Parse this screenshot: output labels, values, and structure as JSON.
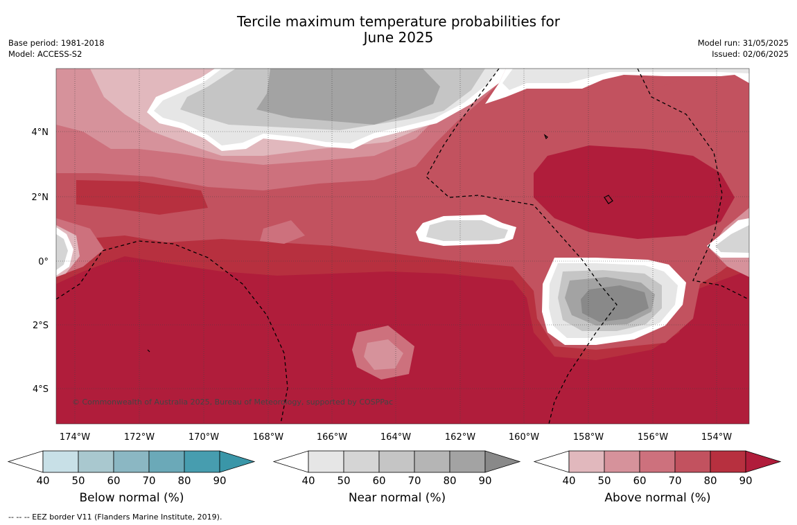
{
  "header": {
    "title_line1": "Tercile maximum temperature probabilities for",
    "title_line2": "June 2025",
    "base_period": "Base period: 1981-2018",
    "model": "Model: ACCESS-S2",
    "model_run": "Model run: 31/05/2025",
    "issued": "Issued: 02/06/2025"
  },
  "map": {
    "lon_labels": [
      "174°W",
      "172°W",
      "170°W",
      "168°W",
      "166°W",
      "164°W",
      "162°W",
      "160°W",
      "158°W",
      "156°W",
      "154°W"
    ],
    "lat_labels": [
      "4°N",
      "2°N",
      "0°",
      "2°S",
      "4°S"
    ],
    "copyright": "© Commonwealth of Australia 2025, Bureau of Meteorology, supported by COSPPac",
    "colors": {
      "above": [
        "#e1b8bd",
        "#d6929b",
        "#cd717d",
        "#c2525f",
        "#b7303f",
        "#b01d3b"
      ],
      "near": [
        "#e6e6e6",
        "#d5d5d5",
        "#c5c5c5",
        "#b5b5b5",
        "#a3a3a3",
        "#898989"
      ],
      "below": [
        "#c8e0e7",
        "#a9c8cf",
        "#8bb7c3",
        "#6ba9b8",
        "#479daf",
        "#3a96a8"
      ],
      "boundary": "#ffffff",
      "eez": "#000000"
    }
  },
  "colorbars": [
    {
      "title": "Below normal (%)",
      "ticks": [
        "40",
        "50",
        "60",
        "70",
        "80",
        "90"
      ],
      "colors": [
        "#c8e0e7",
        "#a9c8cf",
        "#8bb7c3",
        "#6ba9b8",
        "#479daf",
        "#3a96a8"
      ]
    },
    {
      "title": "Near normal (%)",
      "ticks": [
        "40",
        "50",
        "60",
        "70",
        "80",
        "90"
      ],
      "colors": [
        "#e6e6e6",
        "#d5d5d5",
        "#c5c5c5",
        "#b5b5b5",
        "#a3a3a3",
        "#898989"
      ]
    },
    {
      "title": "Above normal (%)",
      "ticks": [
        "40",
        "50",
        "60",
        "70",
        "80",
        "90"
      ],
      "colors": [
        "#e1b8bd",
        "#d6929b",
        "#cd717d",
        "#c2525f",
        "#b7303f",
        "#b01d3b"
      ]
    }
  ],
  "footnote": "-- -- -- EEZ border V11 (Flanders Marine Institute, 2019)."
}
